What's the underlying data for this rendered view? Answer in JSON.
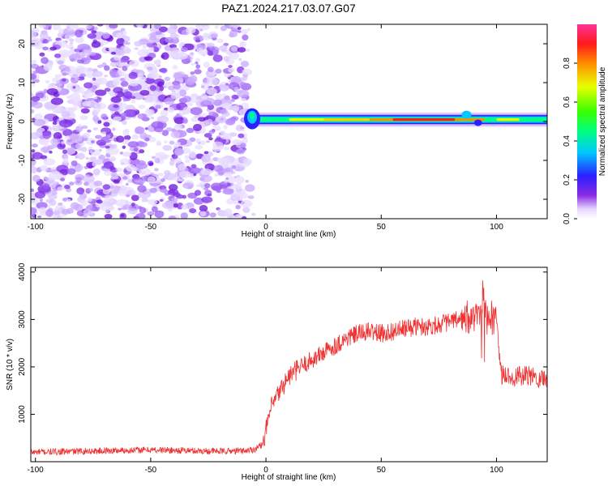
{
  "title": "PAZ1.2024.217.03.07.G07",
  "chart_data": [
    {
      "type": "heatmap",
      "xlabel": "Height of straight line (km)",
      "ylabel": "Frequency (Hz)",
      "xlim": [
        -102,
        122
      ],
      "ylim": [
        -25,
        25
      ],
      "x_ticks": [
        -100,
        -50,
        0,
        50,
        100
      ],
      "x_tick_labels": [
        "-100",
        "-50",
        "0",
        "50",
        "100"
      ],
      "y_ticks": [
        -20,
        -10,
        0,
        10,
        20
      ],
      "y_tick_labels": [
        "-20",
        "-10",
        "0",
        "10",
        "20"
      ],
      "colorbar": {
        "label": "Normalized spectral amplitude",
        "range": [
          0,
          1
        ],
        "ticks": [
          0.0,
          0.2,
          0.4,
          0.6,
          0.8
        ],
        "tick_labels": [
          "0.0",
          "0.2",
          "0.4",
          "0.6",
          "0.8"
        ]
      },
      "grid": false,
      "description_of_signal": {
        "noise_region_x": [
          -102,
          -8
        ],
        "signal_region_x": [
          -8,
          122
        ],
        "signal_center_frequency_hz": 0.5,
        "peak_amplitude_region_x": [
          45,
          95
        ]
      }
    },
    {
      "type": "line",
      "xlabel": "Height of straight line (km)",
      "ylabel": "SNR (10 * v/v)",
      "xlim": [
        -102,
        122
      ],
      "ylim": [
        0,
        4100
      ],
      "x_ticks": [
        -100,
        -50,
        0,
        50,
        100
      ],
      "x_tick_labels": [
        "-100",
        "-50",
        "0",
        "50",
        "100"
      ],
      "y_ticks": [
        1000,
        2000,
        3000,
        4000
      ],
      "y_tick_labels": [
        "1000",
        "2000",
        "3000",
        "4000"
      ],
      "grid": false,
      "color": "#ee3333",
      "series": [
        {
          "x": [
            -102,
            -90,
            -80,
            -70,
            -60,
            -50,
            -40,
            -30,
            -20,
            -10,
            -5,
            -2,
            0,
            2,
            5,
            8,
            10,
            15,
            20,
            25,
            30,
            35,
            40,
            45,
            50,
            55,
            60,
            65,
            70,
            75,
            80,
            85,
            90,
            92,
            94,
            96,
            100,
            102,
            105,
            110,
            115,
            122
          ],
          "values": [
            200,
            210,
            220,
            230,
            240,
            250,
            240,
            230,
            220,
            230,
            260,
            350,
            650,
            1100,
            1400,
            1650,
            1800,
            2000,
            2150,
            2300,
            2450,
            2600,
            2700,
            2750,
            2700,
            2750,
            2800,
            2850,
            2850,
            2900,
            2950,
            3000,
            3050,
            3200,
            3150,
            3000,
            2950,
            1850,
            1800,
            1800,
            1800,
            1750
          ]
        }
      ]
    }
  ]
}
